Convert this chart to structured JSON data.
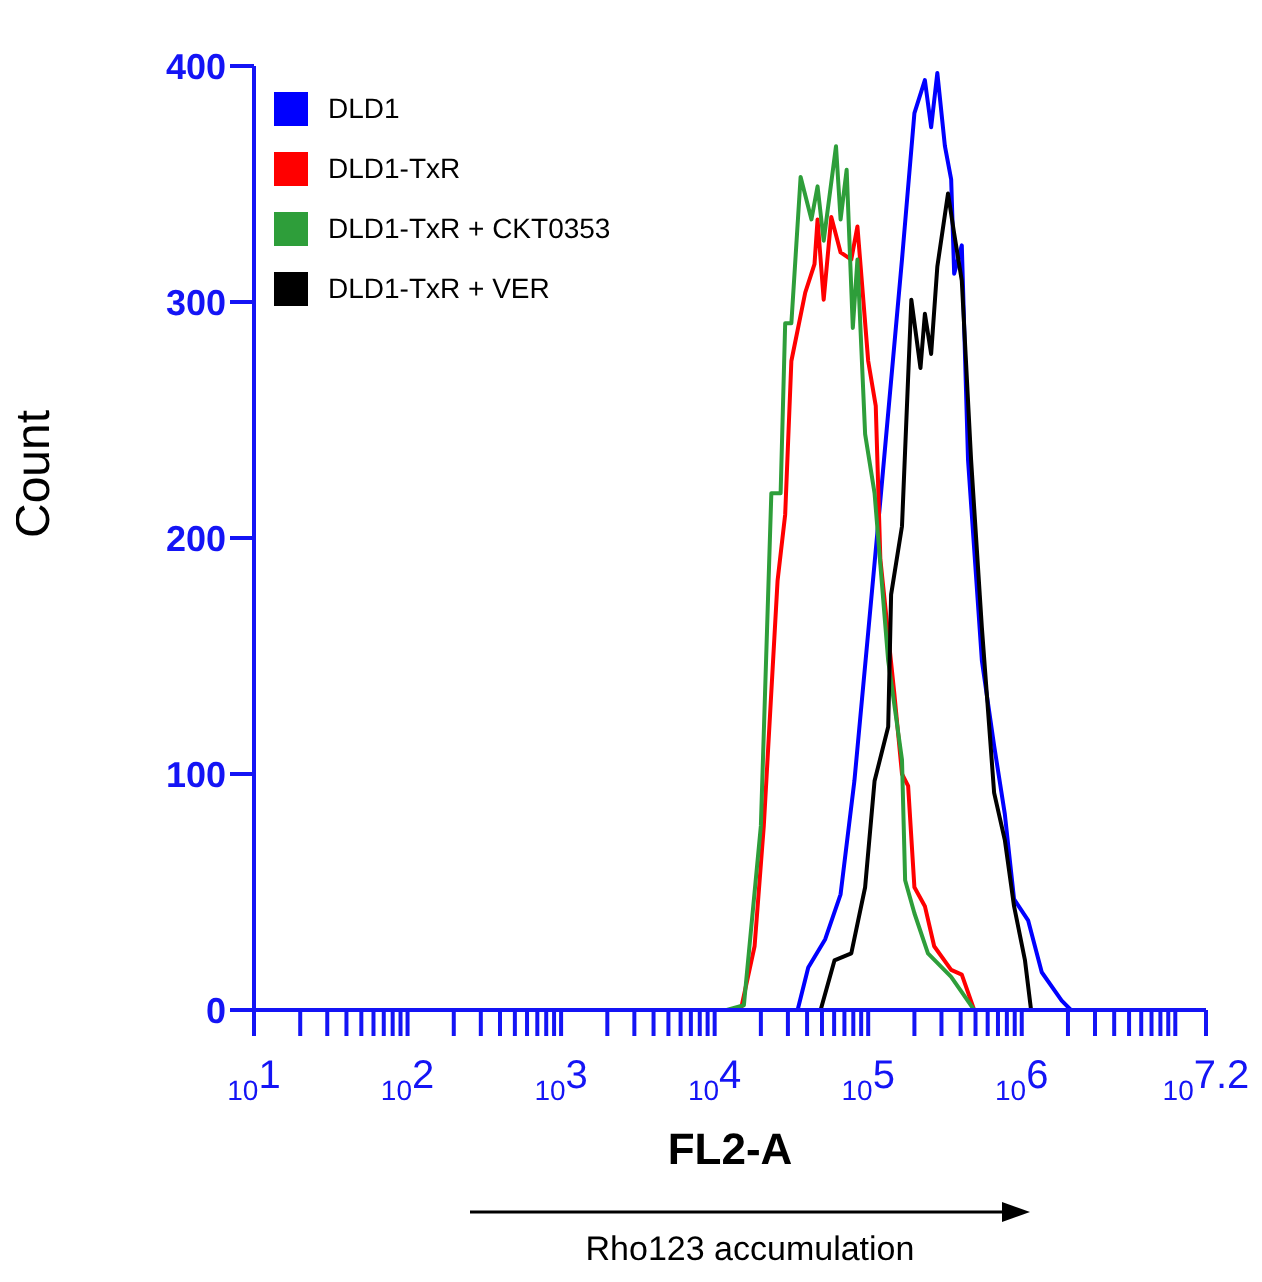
{
  "chart_data": {
    "type": "line",
    "xlabel": "FL2-A",
    "ylabel": "Count",
    "annotations": [
      "Rho123 accumulation"
    ],
    "log": "x",
    "xlim": [
      10,
      15848932
    ],
    "ylim": [
      0,
      400
    ],
    "yticks": [
      0,
      100,
      200,
      300,
      400
    ],
    "xticks": [
      {
        "value": 10,
        "label": "10$^{1}$"
      },
      {
        "value": 20,
        "label": null
      },
      {
        "value": 30,
        "label": null
      },
      {
        "value": 40,
        "label": null
      },
      {
        "value": 50,
        "label": null
      },
      {
        "value": 60,
        "label": null
      },
      {
        "value": 70,
        "label": null
      },
      {
        "value": 80,
        "label": null
      },
      {
        "value": 90,
        "label": null
      },
      {
        "value": 100,
        "label": "10$^{2}$"
      },
      {
        "value": 200,
        "label": null
      },
      {
        "value": 300,
        "label": null
      },
      {
        "value": 400,
        "label": null
      },
      {
        "value": 500,
        "label": null
      },
      {
        "value": 600,
        "label": null
      },
      {
        "value": 700,
        "label": null
      },
      {
        "value": 800,
        "label": null
      },
      {
        "value": 900,
        "label": null
      },
      {
        "value": 1000,
        "label": "10$^{3}$"
      },
      {
        "value": 2000,
        "label": null
      },
      {
        "value": 3000,
        "label": null
      },
      {
        "value": 4000,
        "label": null
      },
      {
        "value": 5000,
        "label": null
      },
      {
        "value": 6000,
        "label": null
      },
      {
        "value": 7000,
        "label": null
      },
      {
        "value": 8000,
        "label": null
      },
      {
        "value": 9000,
        "label": null
      },
      {
        "value": 10000,
        "label": "10$^{4}$"
      },
      {
        "value": 20000,
        "label": null
      },
      {
        "value": 30000,
        "label": null
      },
      {
        "value": 40000,
        "label": null
      },
      {
        "value": 50000,
        "label": null
      },
      {
        "value": 60000,
        "label": null
      },
      {
        "value": 70000,
        "label": null
      },
      {
        "value": 80000,
        "label": null
      },
      {
        "value": 90000,
        "label": null
      },
      {
        "value": 100000,
        "label": "10$^{5}$"
      },
      {
        "value": 200000,
        "label": null
      },
      {
        "value": 300000,
        "label": null
      },
      {
        "value": 400000,
        "label": null
      },
      {
        "value": 500000,
        "label": null
      },
      {
        "value": 600000,
        "label": null
      },
      {
        "value": 700000,
        "label": null
      },
      {
        "value": 800000,
        "label": null
      },
      {
        "value": 900000,
        "label": null
      },
      {
        "value": 1000000,
        "label": "10$^{6}$"
      },
      {
        "value": 2000000,
        "label": null
      },
      {
        "value": 3000000,
        "label": null
      },
      {
        "value": 4000000,
        "label": null
      },
      {
        "value": 5000000,
        "label": null
      },
      {
        "value": 6000000,
        "label": null
      },
      {
        "value": 7000000,
        "label": null
      },
      {
        "value": 8000000,
        "label": null
      },
      {
        "value": 9000000,
        "label": null
      },
      {
        "value": 10000000,
        "label": null
      },
      {
        "value": 15848932,
        "label": "10$^{7.2}$"
      }
    ],
    "legend": "top left",
    "marker": "none",
    "line_style": "solid",
    "series": [
      {
        "name": "DLD1",
        "color": "#0000ff",
        "x": [
          20000,
          34700,
          40700,
          52500,
          66100,
          81300,
          100000,
          120000,
          166000,
          200000,
          234000,
          257000,
          282000,
          316000,
          347000,
          363000,
          407000,
          447000,
          550000,
          661000,
          776000,
          891000,
          1100000,
          1350000,
          1820000,
          2090000
        ],
        "values": [
          0,
          0,
          18,
          30,
          49,
          97,
          160,
          216,
          318,
          380,
          394,
          374,
          397,
          366,
          352,
          312,
          324,
          233,
          148,
          112,
          83,
          47,
          38,
          16,
          4,
          0
        ]
      },
      {
        "name": "DLD1-TxR",
        "color": "#ff0000",
        "x": [
          8510,
          14800,
          18200,
          20900,
          25700,
          28800,
          31600,
          38900,
          44700,
          46800,
          51300,
          57500,
          66100,
          77600,
          85100,
          100000,
          112000,
          120000,
          148000,
          166000,
          182000,
          200000,
          234000,
          269000,
          347000,
          407000,
          490000,
          1000000
        ],
        "values": [
          0,
          0,
          27,
          78,
          182,
          210,
          275,
          304,
          316,
          335,
          301,
          336,
          321,
          318,
          332,
          275,
          256,
          191,
          134,
          100,
          95,
          52,
          44,
          27,
          17,
          15,
          0,
          0
        ]
      },
      {
        "name": "DLD1-TxR + CKT0353",
        "color": "#2e9e3a",
        "x": [
          12000,
          15500,
          20000,
          23400,
          26900,
          28800,
          31600,
          36300,
          42700,
          46800,
          51300,
          61700,
          66100,
          72400,
          79400,
          85100,
          95500,
          110000,
          135000,
          166000,
          174000,
          200000,
          245000,
          347000,
          490000,
          1000000
        ],
        "values": [
          0,
          2,
          78,
          219,
          219,
          291,
          291,
          353,
          335,
          349,
          326,
          366,
          335,
          356,
          289,
          318,
          244,
          219,
          148,
          106,
          55,
          41,
          24,
          14,
          0,
          0
        ]
      },
      {
        "name": "DLD1-TxR + VER",
        "color": "#000000",
        "x": [
          36300,
          49000,
          60300,
          77600,
          95500,
          110000,
          135000,
          141000,
          166000,
          191000,
          219000,
          234000,
          257000,
          282000,
          331000,
          363000,
          407000,
          468000,
          550000,
          661000,
          776000,
          891000,
          1050000,
          1150000,
          1480000
        ],
        "values": [
          0,
          0,
          21,
          24,
          52,
          97,
          120,
          176,
          205,
          301,
          272,
          295,
          278,
          315,
          346,
          329,
          309,
          233,
          162,
          92,
          72,
          44,
          21,
          0,
          0
        ]
      }
    ]
  }
}
